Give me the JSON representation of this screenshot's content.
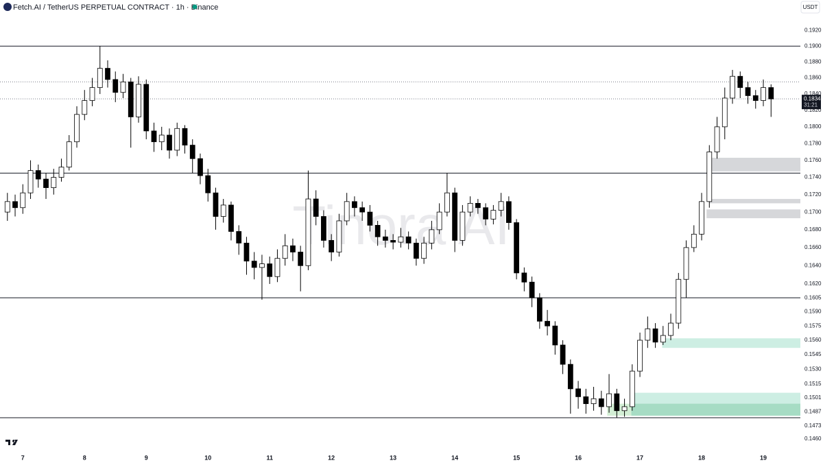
{
  "chart_data": {
    "type": "candlestick",
    "title": "Fetch.AI / TetherUS PERPETUAL CONTRACT · 1h · Binance",
    "currency": "USDT",
    "watermark": "Tinora AI",
    "log_scale": true,
    "grid": false,
    "up_color": "#ffffff",
    "down_color": "#000000",
    "wick_color": "#000000",
    "xlim": [
      6.63,
      19.6
    ],
    "xticks": [
      7,
      8,
      9,
      10,
      11,
      12,
      13,
      14,
      15,
      16,
      17,
      18,
      19
    ],
    "ylim": [
      0.145,
      0.194
    ],
    "yticks": [
      {
        "value": 0.192,
        "label": "0.1920"
      },
      {
        "value": 0.19,
        "label": "0.1900"
      },
      {
        "value": 0.188,
        "label": "0.1880"
      },
      {
        "value": 0.186,
        "label": "0.1860"
      },
      {
        "value": 0.184,
        "label": "0.1840"
      },
      {
        "value": 0.182,
        "label": "0.1820"
      },
      {
        "value": 0.18,
        "label": "0.1800"
      },
      {
        "value": 0.178,
        "label": "0.1780"
      },
      {
        "value": 0.176,
        "label": "0.1760"
      },
      {
        "value": 0.174,
        "label": "0.1740"
      },
      {
        "value": 0.172,
        "label": "0.1720"
      },
      {
        "value": 0.17,
        "label": "0.1700"
      },
      {
        "value": 0.168,
        "label": "0.1680"
      },
      {
        "value": 0.166,
        "label": "0.1660"
      },
      {
        "value": 0.164,
        "label": "0.1640"
      },
      {
        "value": 0.162,
        "label": "0.1620"
      },
      0.1605,
      {
        "value": 0.159,
        "label": "0.1590"
      },
      0.1575,
      {
        "value": 0.156,
        "label": "0.1560"
      },
      0.1545,
      {
        "value": 0.153,
        "label": "0.1530"
      },
      0.1515,
      0.1501,
      0.1487,
      0.1473,
      {
        "value": 0.146,
        "label": "0.1460"
      }
    ],
    "levels": [
      {
        "value": 0.19,
        "style": "solid",
        "color": "#131722"
      },
      {
        "value": 0.1745,
        "style": "solid",
        "color": "#131722"
      },
      {
        "value": 0.1605,
        "style": "solid",
        "color": "#131722"
      },
      {
        "value": 0.1481,
        "style": "solid",
        "color": "#131722"
      },
      {
        "value": 0.1855,
        "style": "dotted",
        "color": "#787b86"
      }
    ],
    "zones": [
      {
        "x0": 18.13,
        "y0": 0.1747,
        "y1": 0.1763,
        "color": "#d6d7da"
      },
      {
        "x0": 18.13,
        "y0": 0.171,
        "y1": 0.1715,
        "color": "#d6d7da"
      },
      {
        "x0": 18.08,
        "y0": 0.1693,
        "y1": 0.1703,
        "color": "#d6d7da"
      },
      {
        "x0": 17.36,
        "y0": 0.1552,
        "y1": 0.1562,
        "color": "#cdeee3"
      },
      {
        "x0": 16.86,
        "y0": 0.1483,
        "y1": 0.1506,
        "color": "#cdeee3"
      },
      {
        "x0": 16.86,
        "y0": 0.1483,
        "y1": 0.1495,
        "color": "#a6dcc4"
      },
      {
        "x0": 16.47,
        "x1": 16.86,
        "y0": 0.1483,
        "y1": 0.1495,
        "color": "#d3efd5"
      }
    ],
    "last_price": 0.1834,
    "countdown": "31:21",
    "x": [
      6.75,
      6.875,
      7,
      7.125,
      7.25,
      7.375,
      7.5,
      7.625,
      7.75,
      7.875,
      8,
      8.125,
      8.25,
      8.375,
      8.5,
      8.625,
      8.75,
      8.875,
      9,
      9.125,
      9.25,
      9.375,
      9.5,
      9.625,
      9.75,
      9.875,
      10,
      10.125,
      10.25,
      10.375,
      10.5,
      10.625,
      10.75,
      10.875,
      11,
      11.125,
      11.25,
      11.375,
      11.5,
      11.625,
      11.75,
      11.875,
      12,
      12.125,
      12.25,
      12.375,
      12.5,
      12.625,
      12.75,
      12.875,
      13,
      13.125,
      13.25,
      13.375,
      13.5,
      13.625,
      13.75,
      13.875,
      14,
      14.125,
      14.25,
      14.375,
      14.5,
      14.625,
      14.75,
      14.875,
      15,
      15.125,
      15.25,
      15.375,
      15.5,
      15.625,
      15.75,
      15.875,
      16,
      16.125,
      16.25,
      16.375,
      16.5,
      16.625,
      16.75,
      16.875,
      17,
      17.125,
      17.25,
      17.375,
      17.5,
      17.625,
      17.75,
      17.875,
      18,
      18.125,
      18.25,
      18.375,
      18.5,
      18.625,
      18.75,
      18.875,
      19,
      19.125
    ],
    "open": [
      0.17,
      0.1712,
      0.1705,
      0.1722,
      0.1748,
      0.1738,
      0.1728,
      0.174,
      0.1752,
      0.1782,
      0.1815,
      0.1832,
      0.1848,
      0.1872,
      0.1858,
      0.1842,
      0.1855,
      0.1812,
      0.1852,
      0.1795,
      0.1782,
      0.179,
      0.1772,
      0.1798,
      0.1778,
      0.1762,
      0.1742,
      0.1722,
      0.1695,
      0.1708,
      0.1678,
      0.1665,
      0.1645,
      0.1638,
      0.1642,
      0.1628,
      0.1648,
      0.1662,
      0.1655,
      0.164,
      0.1715,
      0.1695,
      0.1668,
      0.1655,
      0.169,
      0.1712,
      0.1705,
      0.17,
      0.1685,
      0.1672,
      0.1668,
      0.1666,
      0.1672,
      0.1665,
      0.1648,
      0.1665,
      0.168,
      0.17,
      0.1722,
      0.1668,
      0.17,
      0.171,
      0.1705,
      0.1692,
      0.1702,
      0.1712,
      0.1688,
      0.1632,
      0.1622,
      0.1605,
      0.158,
      0.1575,
      0.1555,
      0.1535,
      0.151,
      0.1502,
      0.1495,
      0.15,
      0.1492,
      0.1505,
      0.1488,
      0.1492,
      0.1528,
      0.156,
      0.1572,
      0.1558,
      0.1565,
      0.1578,
      0.1625,
      0.166,
      0.1675,
      0.1712,
      0.177,
      0.18,
      0.1835,
      0.1862,
      0.1848,
      0.1838,
      0.1832,
      0.1848
    ],
    "high": [
      0.1722,
      0.172,
      0.1732,
      0.176,
      0.1755,
      0.1745,
      0.175,
      0.1762,
      0.179,
      0.1825,
      0.1845,
      0.186,
      0.19,
      0.1882,
      0.1868,
      0.1865,
      0.186,
      0.1862,
      0.1858,
      0.1805,
      0.18,
      0.1798,
      0.1805,
      0.1802,
      0.1785,
      0.1768,
      0.175,
      0.1728,
      0.1715,
      0.1712,
      0.1685,
      0.1672,
      0.1655,
      0.1652,
      0.165,
      0.1658,
      0.1675,
      0.167,
      0.1662,
      0.1748,
      0.1725,
      0.1702,
      0.1675,
      0.1698,
      0.1722,
      0.1718,
      0.1712,
      0.1708,
      0.169,
      0.168,
      0.1675,
      0.1682,
      0.1678,
      0.167,
      0.1672,
      0.169,
      0.171,
      0.1745,
      0.1728,
      0.1708,
      0.1718,
      0.1715,
      0.171,
      0.1708,
      0.1722,
      0.1718,
      0.1692,
      0.1638,
      0.1628,
      0.161,
      0.1592,
      0.158,
      0.156,
      0.154,
      0.1518,
      0.151,
      0.1512,
      0.1508,
      0.1525,
      0.151,
      0.15,
      0.1535,
      0.1568,
      0.1585,
      0.1578,
      0.1575,
      0.1588,
      0.1632,
      0.1668,
      0.1685,
      0.1722,
      0.1778,
      0.1812,
      0.1848,
      0.187,
      0.1868,
      0.1855,
      0.1845,
      0.1858,
      0.1852
    ],
    "low": [
      0.169,
      0.1695,
      0.1698,
      0.1715,
      0.1728,
      0.1715,
      0.172,
      0.1735,
      0.1748,
      0.1775,
      0.1808,
      0.1825,
      0.184,
      0.1848,
      0.183,
      0.1835,
      0.1775,
      0.1805,
      0.1785,
      0.177,
      0.1772,
      0.1762,
      0.1765,
      0.1768,
      0.1745,
      0.1732,
      0.1712,
      0.168,
      0.1688,
      0.1668,
      0.1652,
      0.163,
      0.1625,
      0.1603,
      0.162,
      0.1622,
      0.164,
      0.1645,
      0.1612,
      0.1635,
      0.1685,
      0.166,
      0.1645,
      0.165,
      0.1685,
      0.1695,
      0.169,
      0.1678,
      0.1662,
      0.166,
      0.1658,
      0.166,
      0.1658,
      0.164,
      0.1642,
      0.1658,
      0.1675,
      0.1695,
      0.1655,
      0.1662,
      0.1695,
      0.1698,
      0.1685,
      0.1686,
      0.1695,
      0.168,
      0.1625,
      0.1612,
      0.1595,
      0.1572,
      0.1565,
      0.1545,
      0.1525,
      0.1485,
      0.149,
      0.1485,
      0.1488,
      0.1484,
      0.1486,
      0.1481,
      0.1482,
      0.1488,
      0.1522,
      0.1552,
      0.1552,
      0.1555,
      0.156,
      0.1572,
      0.1605,
      0.1655,
      0.1668,
      0.1705,
      0.1762,
      0.1785,
      0.1828,
      0.1835,
      0.1828,
      0.1822,
      0.1825,
      0.1812
    ],
    "close": [
      0.1712,
      0.1705,
      0.1722,
      0.1748,
      0.1738,
      0.1728,
      0.174,
      0.1752,
      0.1782,
      0.1815,
      0.1832,
      0.1848,
      0.1872,
      0.1858,
      0.1842,
      0.1855,
      0.1812,
      0.1852,
      0.1795,
      0.1782,
      0.179,
      0.1772,
      0.1798,
      0.1778,
      0.1762,
      0.1742,
      0.1722,
      0.1695,
      0.1708,
      0.1678,
      0.1665,
      0.1645,
      0.1638,
      0.1642,
      0.1628,
      0.1648,
      0.1662,
      0.1655,
      0.164,
      0.1715,
      0.1695,
      0.1668,
      0.1655,
      0.169,
      0.1712,
      0.1705,
      0.17,
      0.1685,
      0.1672,
      0.1668,
      0.1666,
      0.1672,
      0.1665,
      0.1648,
      0.1665,
      0.168,
      0.17,
      0.1722,
      0.1668,
      0.17,
      0.171,
      0.1705,
      0.1692,
      0.1702,
      0.1712,
      0.1688,
      0.1632,
      0.1622,
      0.1605,
      0.158,
      0.1575,
      0.1555,
      0.1535,
      0.151,
      0.1502,
      0.1495,
      0.15,
      0.1492,
      0.1505,
      0.1488,
      0.1492,
      0.1528,
      0.156,
      0.1572,
      0.1558,
      0.1565,
      0.1578,
      0.1625,
      0.166,
      0.1675,
      0.1712,
      0.177,
      0.18,
      0.1835,
      0.1862,
      0.1848,
      0.1838,
      0.1832,
      0.1848,
      0.1834
    ]
  }
}
